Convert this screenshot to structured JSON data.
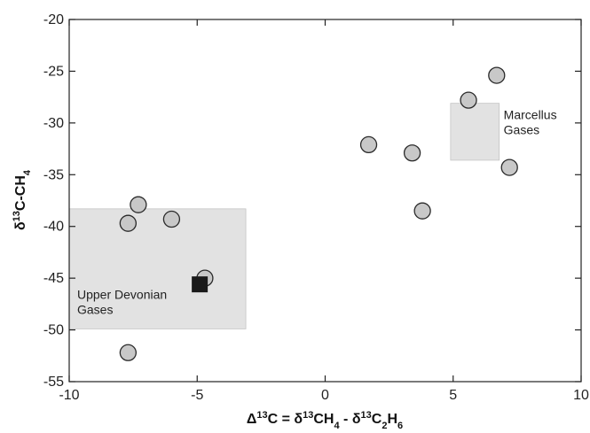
{
  "chart_data": {
    "type": "scatter",
    "title": "",
    "xlabel": {
      "parts": [
        {
          "text": "Δ",
          "sup": false,
          "sub": false
        },
        {
          "text": "13",
          "sup": true,
          "sub": false
        },
        {
          "text": "C = δ",
          "sup": false,
          "sub": false
        },
        {
          "text": "13",
          "sup": true,
          "sub": false
        },
        {
          "text": "CH",
          "sup": false,
          "sub": false
        },
        {
          "text": "4",
          "sup": false,
          "sub": true
        },
        {
          "text": " - δ",
          "sup": false,
          "sub": false
        },
        {
          "text": "13",
          "sup": true,
          "sub": false
        },
        {
          "text": "C",
          "sup": false,
          "sub": false
        },
        {
          "text": "2",
          "sup": false,
          "sub": true
        },
        {
          "text": "H",
          "sup": false,
          "sub": false
        },
        {
          "text": "6",
          "sup": false,
          "sub": true
        }
      ]
    },
    "ylabel": {
      "parts": [
        {
          "text": "δ",
          "sup": false,
          "sub": false
        },
        {
          "text": "13",
          "sup": true,
          "sub": false
        },
        {
          "text": "C-CH",
          "sup": false,
          "sub": false
        },
        {
          "text": "4",
          "sup": false,
          "sub": true
        }
      ]
    },
    "xlim": [
      -10,
      10
    ],
    "ylim": [
      -55,
      -20
    ],
    "xticks": [
      -10,
      -5,
      0,
      5,
      10
    ],
    "yticks": [
      -20,
      -25,
      -30,
      -35,
      -40,
      -45,
      -50,
      -55
    ],
    "grid": false,
    "regions": [
      {
        "lines": [
          "Marcellus",
          "Gases"
        ],
        "x": [
          4.9,
          6.8
        ],
        "y": [
          -33.6,
          -28.1
        ]
      },
      {
        "lines": [
          "Upper Devonian",
          "Gases"
        ],
        "x": [
          -10,
          -3.1
        ],
        "y": [
          -49.9,
          -38.3
        ]
      }
    ],
    "series": [
      {
        "marker": "circle",
        "color": "#c8c8c8",
        "points": [
          {
            "x": 6.7,
            "y": -25.4
          },
          {
            "x": 5.6,
            "y": -27.8
          },
          {
            "x": 7.2,
            "y": -34.3
          },
          {
            "x": 1.7,
            "y": -32.1
          },
          {
            "x": 3.4,
            "y": -32.9
          },
          {
            "x": 3.8,
            "y": -38.5
          },
          {
            "x": -7.3,
            "y": -37.9
          },
          {
            "x": -7.7,
            "y": -39.7
          },
          {
            "x": -6.0,
            "y": -39.3
          },
          {
            "x": -4.7,
            "y": -45.0
          },
          {
            "x": -7.7,
            "y": -52.2
          }
        ]
      },
      {
        "marker": "square",
        "color": "#1a1a1a",
        "points": [
          {
            "x": -4.9,
            "y": -45.6
          }
        ]
      }
    ]
  },
  "colors": {
    "region_fill": "#e2e2e2",
    "axis": "#222222",
    "marker_stroke": "#2a2a2a"
  }
}
